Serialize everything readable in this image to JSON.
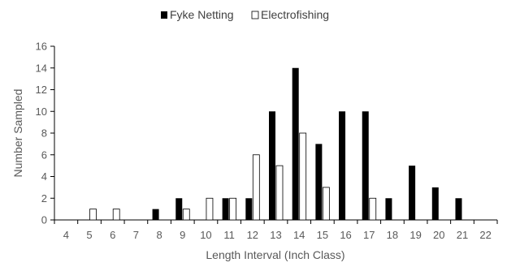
{
  "chart_data": {
    "type": "bar",
    "title": "",
    "xlabel": "Length Interval (Inch Class)",
    "ylabel": "Number Sampled",
    "categories": [
      "4",
      "5",
      "6",
      "7",
      "8",
      "9",
      "10",
      "11",
      "12",
      "13",
      "14",
      "15",
      "16",
      "17",
      "18",
      "19",
      "20",
      "21",
      "22"
    ],
    "series": [
      {
        "name": "Fyke Netting",
        "color": "#000000",
        "fill": "solid",
        "values": [
          0,
          0,
          0,
          0,
          1,
          2,
          0,
          2,
          2,
          10,
          14,
          7,
          10,
          10,
          2,
          5,
          3,
          2,
          0
        ]
      },
      {
        "name": "Electrofishing",
        "color": "#ffffff",
        "fill": "outline",
        "values": [
          0,
          1,
          1,
          0,
          0,
          1,
          2,
          2,
          6,
          5,
          8,
          3,
          0,
          2,
          0,
          0,
          0,
          0,
          0
        ]
      }
    ],
    "ylim": [
      0,
      16
    ],
    "yticks": [
      0,
      2,
      4,
      6,
      8,
      10,
      12,
      14,
      16
    ],
    "grid": false,
    "legend_position": "top-center"
  }
}
